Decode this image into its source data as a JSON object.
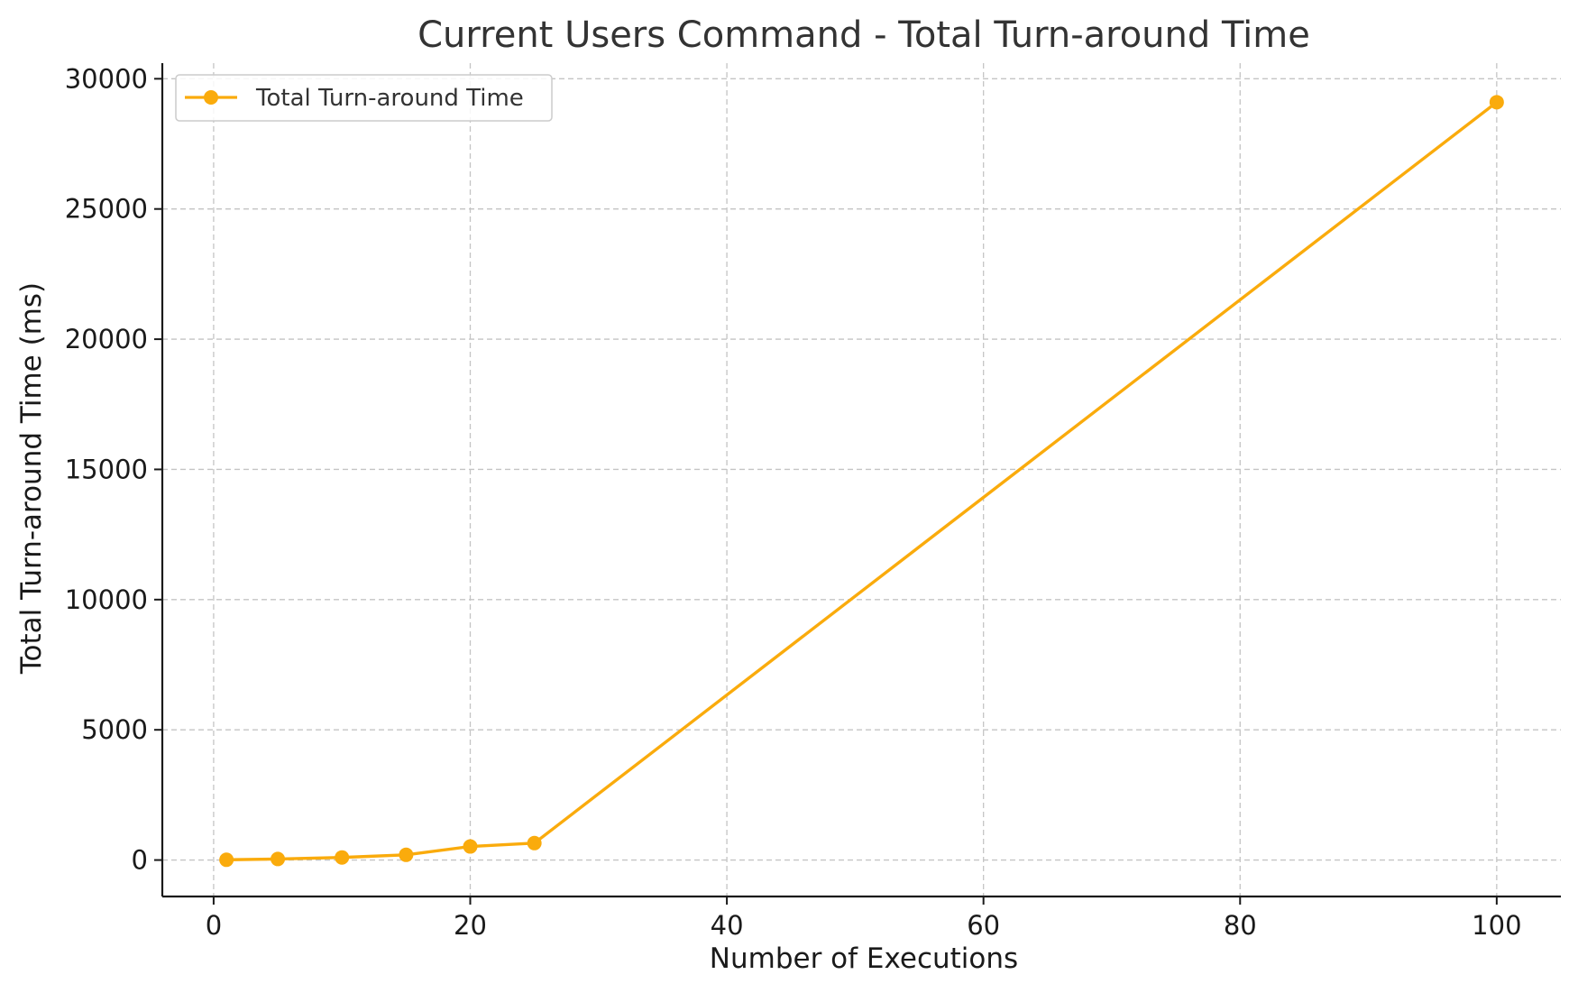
{
  "chart_data": {
    "type": "line",
    "title": "Current Users Command - Total Turn-around Time",
    "xlabel": "Number of Executions",
    "ylabel": "Total Turn-around Time (ms)",
    "xlim": [
      -4,
      105
    ],
    "ylim": [
      -1400,
      30600
    ],
    "x_ticks": [
      0,
      20,
      40,
      60,
      80,
      100
    ],
    "y_ticks": [
      0,
      5000,
      10000,
      15000,
      20000,
      25000,
      30000
    ],
    "grid": true,
    "legend_position": "top-left",
    "series": [
      {
        "name": "Total Turn-around Time",
        "color": "#FAAB0C",
        "marker": "circle",
        "x": [
          1,
          5,
          10,
          15,
          20,
          25,
          100
        ],
        "y": [
          10,
          40,
          100,
          200,
          520,
          650,
          29100
        ]
      }
    ]
  }
}
